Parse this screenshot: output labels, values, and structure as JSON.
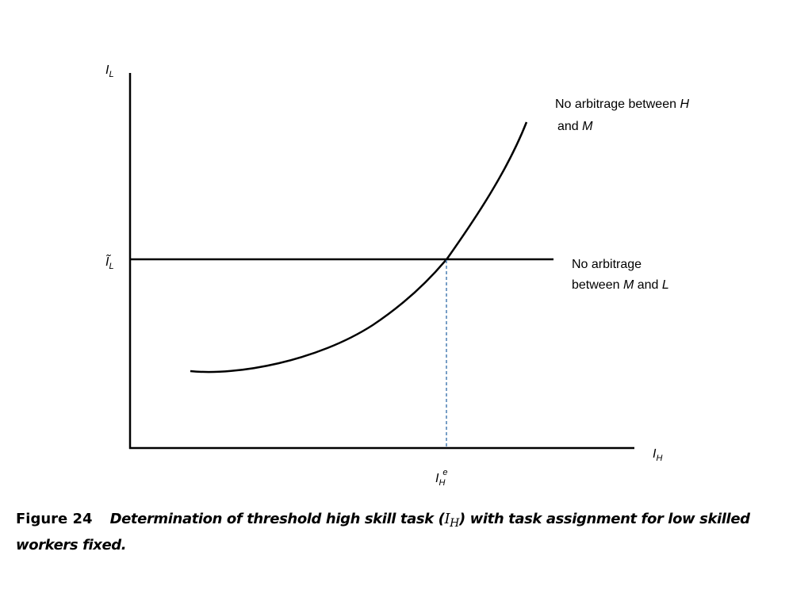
{
  "axes": {
    "y_label": "I",
    "y_label_sub": "L",
    "x_label": "I",
    "x_label_sub": "H",
    "y_tick": "Ĩ",
    "y_tick_sub": "L",
    "x_tick": "I",
    "x_tick_sub": "H",
    "x_tick_sup": "e"
  },
  "curve_label": {
    "line1_prefix": "No arbitrage between ",
    "line1_var": "H",
    "line2_prefix": "and ",
    "line2_var": "M"
  },
  "flat_label": {
    "line1": "No arbitrage",
    "line2_prefix": "between ",
    "line2_var1": "M",
    "line2_mid": " and ",
    "line2_var2": "L"
  },
  "caption": {
    "figure_number": "Figure 24",
    "text_before": "Determination of threshold high skill task (",
    "math_var": "I",
    "math_sub": "H",
    "text_after": ") with task assignment for low skilled workers fixed."
  }
}
